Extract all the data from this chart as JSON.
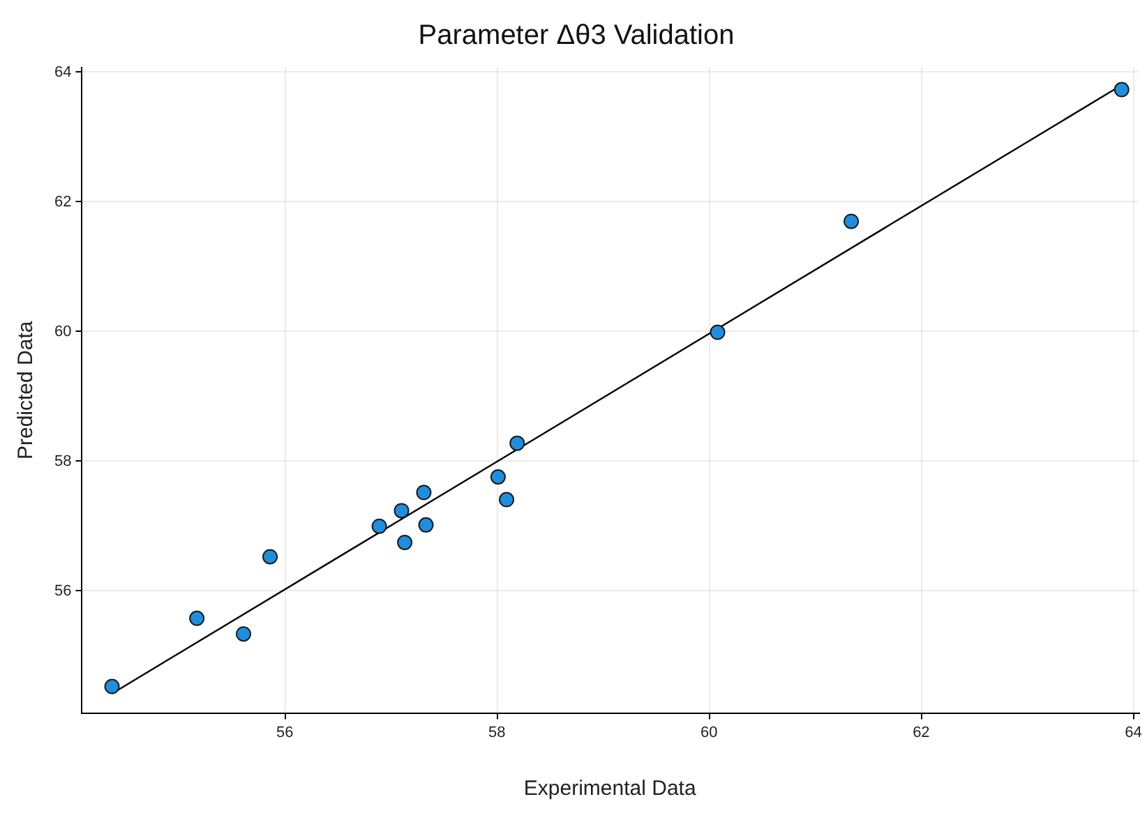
{
  "chart_data": {
    "type": "scatter",
    "title": "Parameter Δθ3 Validation",
    "xlabel": "Experimental Data",
    "ylabel": "Predicted Data",
    "xlim": [
      54.08,
      64.05
    ],
    "ylim": [
      54.11,
      64.08
    ],
    "xticks": [
      56,
      58,
      60,
      62,
      64
    ],
    "yticks": [
      56,
      58,
      60,
      62,
      64
    ],
    "grid": true,
    "marker": "circle",
    "series": [
      {
        "color": "#1e8fe0",
        "x": [
          54.37,
          55.17,
          55.61,
          55.86,
          56.89,
          57.1,
          57.13,
          57.31,
          57.33,
          58.01,
          58.09,
          58.19,
          60.08,
          61.34,
          63.89
        ],
        "values": [
          54.53,
          55.58,
          55.34,
          56.53,
          57.0,
          57.24,
          56.75,
          57.52,
          57.02,
          57.76,
          57.41,
          58.28,
          59.99,
          61.7,
          63.73
        ]
      },
      {
        "type": "line",
        "color": "#000000",
        "x": [
          54.37,
          63.89
        ],
        "values": [
          54.42,
          63.8
        ],
        "marker": "none",
        "line_style": "solid"
      }
    ]
  }
}
